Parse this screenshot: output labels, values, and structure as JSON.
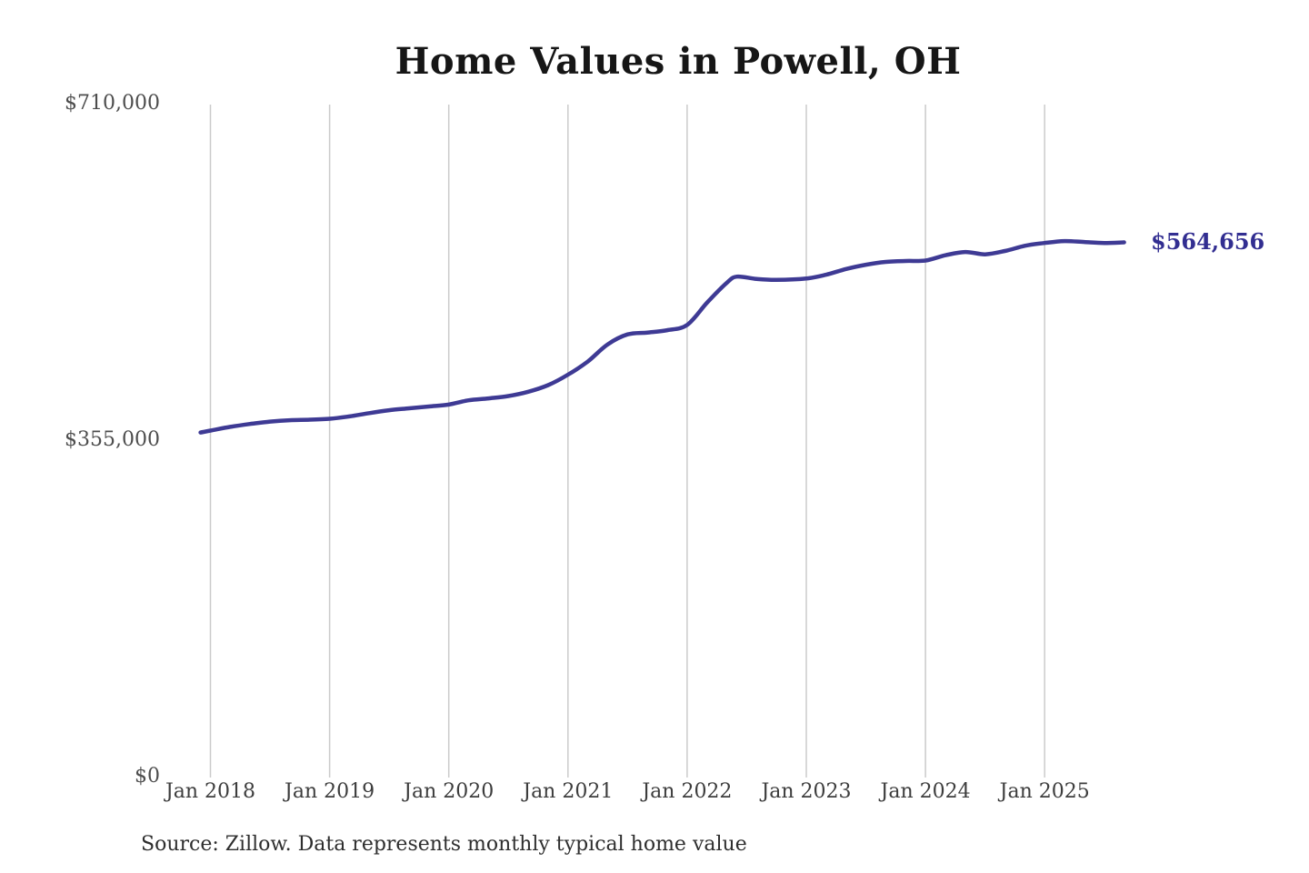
{
  "chart": {
    "title": "Home Values in Powell, OH",
    "end_label": "$564,656",
    "source": "Source: Zillow. Data represents monthly typical home value",
    "colors": {
      "line": "#3e3a94",
      "end_label_text": "#322e91",
      "grid": "#cbcbcb",
      "y_axis_text": "#4d4d4d",
      "x_axis_text": "#3d3d3d",
      "title_text": "#161616",
      "background": "#ffffff"
    }
  },
  "chart_data": {
    "type": "line",
    "title": "Home Values in Powell, OH",
    "ylabel": "",
    "xlabel": "",
    "unit": "USD",
    "ylim": [
      0,
      710000
    ],
    "grid": "vertical-only",
    "legend": "none",
    "y_ticks": [
      {
        "label": "$710,000",
        "value": 710000
      },
      {
        "label": "$355,000",
        "value": 355000
      },
      {
        "label": "$0",
        "value": 0
      }
    ],
    "x_ticks": [
      "Jan 2018",
      "Jan 2019",
      "Jan 2020",
      "Jan 2021",
      "Jan 2022",
      "Jan 2023",
      "Jan 2024",
      "Jan 2025"
    ],
    "final_value": 564656,
    "end_value_label": "$564,656",
    "series": [
      {
        "name": "Typical home value",
        "points": [
          [
            "2017-12",
            364000
          ],
          [
            "2018-01",
            366000
          ],
          [
            "2018-03",
            370000
          ],
          [
            "2018-05",
            373000
          ],
          [
            "2018-07",
            375500
          ],
          [
            "2018-09",
            377000
          ],
          [
            "2018-11",
            377500
          ],
          [
            "2019-01",
            378500
          ],
          [
            "2019-03",
            381000
          ],
          [
            "2019-05",
            384500
          ],
          [
            "2019-07",
            387500
          ],
          [
            "2019-09",
            389500
          ],
          [
            "2019-11",
            391500
          ],
          [
            "2020-01",
            393500
          ],
          [
            "2020-03",
            398000
          ],
          [
            "2020-05",
            400000
          ],
          [
            "2020-07",
            402500
          ],
          [
            "2020-09",
            407000
          ],
          [
            "2020-11",
            414000
          ],
          [
            "2021-01",
            425000
          ],
          [
            "2021-03",
            439000
          ],
          [
            "2021-05",
            457000
          ],
          [
            "2021-07",
            467500
          ],
          [
            "2021-09",
            469500
          ],
          [
            "2021-11",
            472000
          ],
          [
            "2022-01",
            477500
          ],
          [
            "2022-03",
            501000
          ],
          [
            "2022-05",
            522000
          ],
          [
            "2022-06",
            528500
          ],
          [
            "2022-08",
            526000
          ],
          [
            "2022-10",
            525000
          ],
          [
            "2023-01",
            526500
          ],
          [
            "2023-03",
            530500
          ],
          [
            "2023-05",
            536500
          ],
          [
            "2023-07",
            541000
          ],
          [
            "2023-09",
            544000
          ],
          [
            "2023-11",
            545000
          ],
          [
            "2024-01",
            545500
          ],
          [
            "2024-03",
            551000
          ],
          [
            "2024-05",
            554500
          ],
          [
            "2024-07",
            552000
          ],
          [
            "2024-09",
            555500
          ],
          [
            "2024-11",
            561000
          ],
          [
            "2025-01",
            564000
          ],
          [
            "2025-03",
            566000
          ],
          [
            "2025-05",
            565000
          ],
          [
            "2025-07",
            564000
          ],
          [
            "2025-09",
            564656
          ]
        ]
      }
    ]
  }
}
